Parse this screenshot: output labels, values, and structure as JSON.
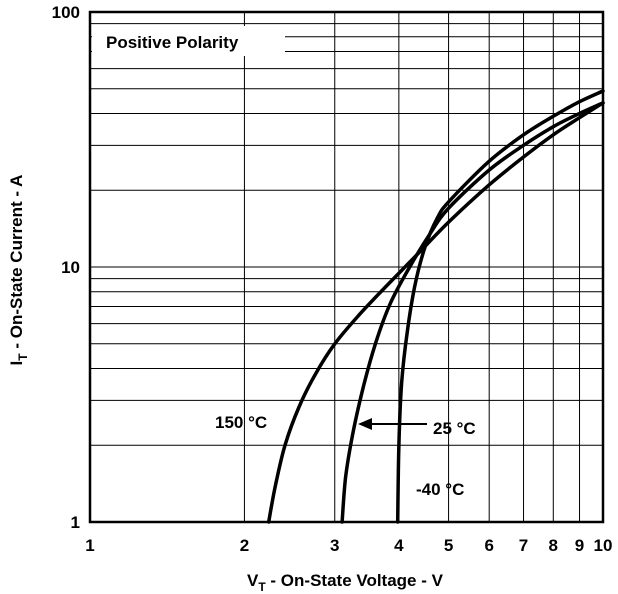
{
  "chart_data": {
    "type": "line",
    "title": "",
    "annotation": "Positive Polarity",
    "xlabel_main": "V",
    "xlabel_sub": "T",
    "xlabel_rest": " - On-State Voltage - V",
    "ylabel_main": "I",
    "ylabel_sub": "T",
    "ylabel_rest": " - On-State Current - A",
    "x_scale": "log",
    "y_scale": "log",
    "xlim": [
      1,
      10
    ],
    "ylim": [
      1,
      100
    ],
    "x_ticks": [
      1,
      2,
      3,
      4,
      5,
      6,
      7,
      8,
      9,
      10
    ],
    "x_tick_labels": [
      "1",
      "2",
      "3",
      "4",
      "5",
      "6",
      "7",
      "8",
      "9",
      "10"
    ],
    "y_ticks": [
      1,
      10,
      100
    ],
    "y_tick_labels": [
      "1",
      "10",
      "100"
    ],
    "grid": true,
    "series": [
      {
        "name": "150 °C",
        "x": [
          2.23,
          2.3,
          2.4,
          2.55,
          2.75,
          3.0,
          3.35,
          3.8,
          4.4,
          5.0,
          6.0,
          7.0,
          8.0,
          9.0,
          10.0
        ],
        "y": [
          1.0,
          1.4,
          2.0,
          2.8,
          3.8,
          5.0,
          6.5,
          8.5,
          11.5,
          15.0,
          21.0,
          27.0,
          33.0,
          38.5,
          44.0
        ]
      },
      {
        "name": "25 °C",
        "x": [
          3.1,
          3.15,
          3.25,
          3.4,
          3.6,
          3.85,
          4.2,
          4.6,
          5.0,
          6.0,
          7.0,
          8.0,
          9.0,
          10.0
        ],
        "y": [
          1.0,
          1.5,
          2.2,
          3.3,
          5.0,
          7.2,
          10.0,
          13.5,
          17.0,
          24.0,
          30.0,
          35.5,
          40.0,
          44.0
        ]
      },
      {
        "name": "-40 °C",
        "x": [
          3.98,
          4.0,
          4.05,
          4.15,
          4.3,
          4.5,
          4.75,
          5.0,
          6.0,
          7.0,
          8.0,
          9.0,
          10.0
        ],
        "y": [
          1.0,
          2.0,
          3.5,
          5.5,
          8.5,
          12.0,
          15.5,
          18.0,
          26.0,
          33.0,
          39.0,
          44.5,
          49.0
        ]
      }
    ],
    "series_labels": {
      "s150": "150 °C",
      "s25": "25 °C",
      "sm40": "-40 °C"
    }
  }
}
